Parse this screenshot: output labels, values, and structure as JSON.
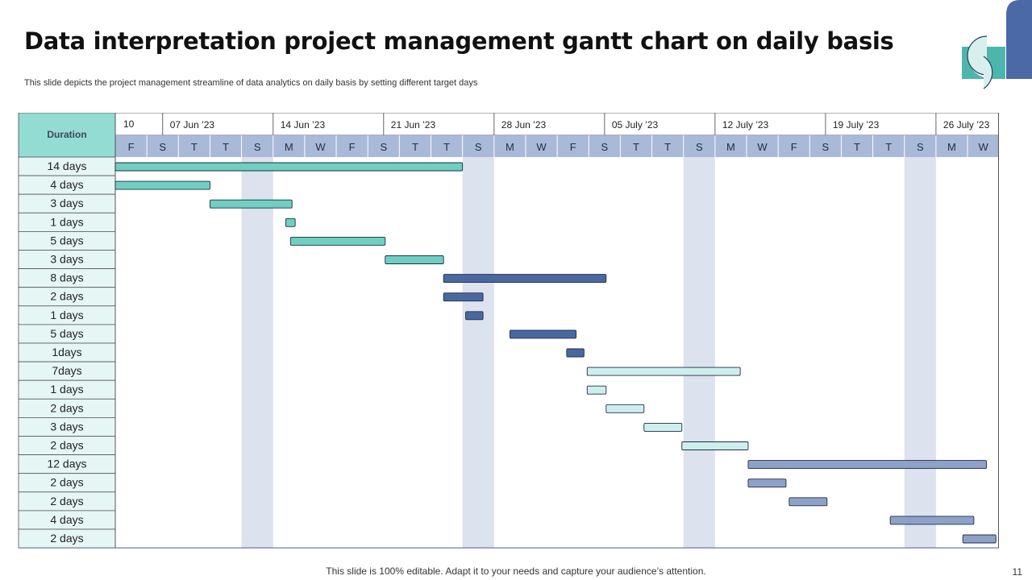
{
  "slide": {
    "title": "Data interpretation project management gantt chart on daily basis",
    "subtitle": "This slide depicts the project management streamline of data analytics on daily basis by setting different target days",
    "footer": "This slide is 100% editable. Adapt it to your needs and capture your audience’s attention.",
    "page_number": "11"
  },
  "colors": {
    "teal": "#6fcfc0",
    "blue": "#4a68a0",
    "light_teal": "#cdeeed",
    "slate": "#8ea1c9",
    "header_teal": "#93dcd3",
    "row_bg": "#e6f6f4",
    "weekday_bg": "#a9b9d8",
    "weekend_shade": "#dce2ee",
    "deco_blue": "#4a69a6",
    "deco_teal": "#4db6ac"
  },
  "gantt": {
    "duration_header": "Duration",
    "weeks": [
      "10",
      "07 Jun ’23",
      "14 Jun ’23",
      "21 Jun ’23",
      "28 Jun ’23",
      "05 July ’23",
      "12 July ’23",
      "19 July ’23",
      "26 July ’23"
    ],
    "day_letters": [
      "F",
      "S",
      "T",
      "T",
      "S",
      "M",
      "W",
      "F",
      "S",
      "T",
      "T",
      "S",
      "M",
      "W",
      "F",
      "S",
      "T",
      "T",
      "S",
      "M",
      "W",
      "F",
      "S",
      "T",
      "T",
      "S",
      "M",
      "W"
    ],
    "shaded_day_indices": [
      4,
      11,
      18,
      25
    ],
    "tasks": [
      {
        "duration": "14 days",
        "start": 0,
        "end": 11,
        "color": "teal"
      },
      {
        "duration": "4 days",
        "start": 0,
        "end": 3,
        "color": "teal"
      },
      {
        "duration": "3 days",
        "start": 3,
        "end": 5.6,
        "color": "teal"
      },
      {
        "duration": "1 days",
        "start": 5.4,
        "end": 5.7,
        "color": "teal"
      },
      {
        "duration": "5 days",
        "start": 5.55,
        "end": 8.55,
        "color": "teal"
      },
      {
        "duration": "3 days",
        "start": 8.55,
        "end": 10.4,
        "color": "teal"
      },
      {
        "duration": "8 days",
        "start": 10.4,
        "end": 15.55,
        "color": "blue"
      },
      {
        "duration": "2 days",
        "start": 10.4,
        "end": 11.65,
        "color": "blue"
      },
      {
        "duration": "1 days",
        "start": 11.1,
        "end": 11.65,
        "color": "blue"
      },
      {
        "duration": "5 days",
        "start": 12.5,
        "end": 14.6,
        "color": "blue"
      },
      {
        "duration": "1days",
        "start": 14.3,
        "end": 14.85,
        "color": "blue"
      },
      {
        "duration": "7days",
        "start": 14.95,
        "end": 19.8,
        "color": "light_teal"
      },
      {
        "duration": "1 days",
        "start": 14.95,
        "end": 15.55,
        "color": "light_teal"
      },
      {
        "duration": "2 days",
        "start": 15.55,
        "end": 16.75,
        "color": "light_teal"
      },
      {
        "duration": "3 days",
        "start": 16.75,
        "end": 17.95,
        "color": "light_teal"
      },
      {
        "duration": "2 days",
        "start": 17.95,
        "end": 20.05,
        "color": "light_teal"
      },
      {
        "duration": "12 days",
        "start": 20.05,
        "end": 27.6,
        "color": "slate"
      },
      {
        "duration": "2 days",
        "start": 20.05,
        "end": 21.25,
        "color": "slate"
      },
      {
        "duration": "2 days",
        "start": 21.35,
        "end": 22.55,
        "color": "slate"
      },
      {
        "duration": "4 days",
        "start": 24.55,
        "end": 27.2,
        "color": "slate"
      },
      {
        "duration": "2 days",
        "start": 26.85,
        "end": 27.9,
        "color": "slate"
      }
    ]
  }
}
